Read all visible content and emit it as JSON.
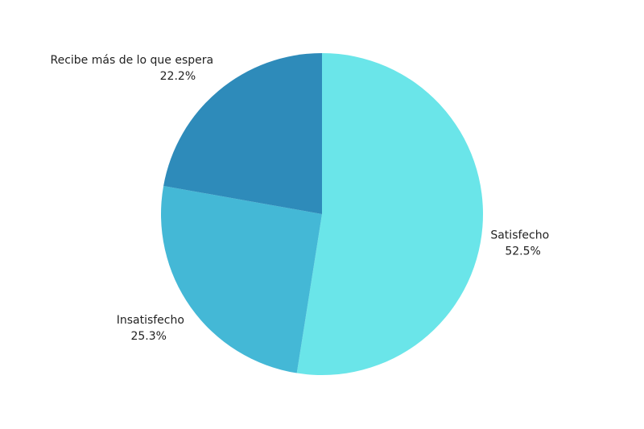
{
  "chart_data": {
    "type": "pie",
    "categories": [
      "Satisfecho",
      "Insatisfecho",
      "Recibe más de lo que espera"
    ],
    "values": [
      52.5,
      25.3,
      22.2
    ],
    "value_labels": [
      "52.5%",
      "25.3%",
      "22.2%"
    ],
    "colors": [
      "#6ae5e9",
      "#44b8d6",
      "#2e8bba"
    ]
  }
}
